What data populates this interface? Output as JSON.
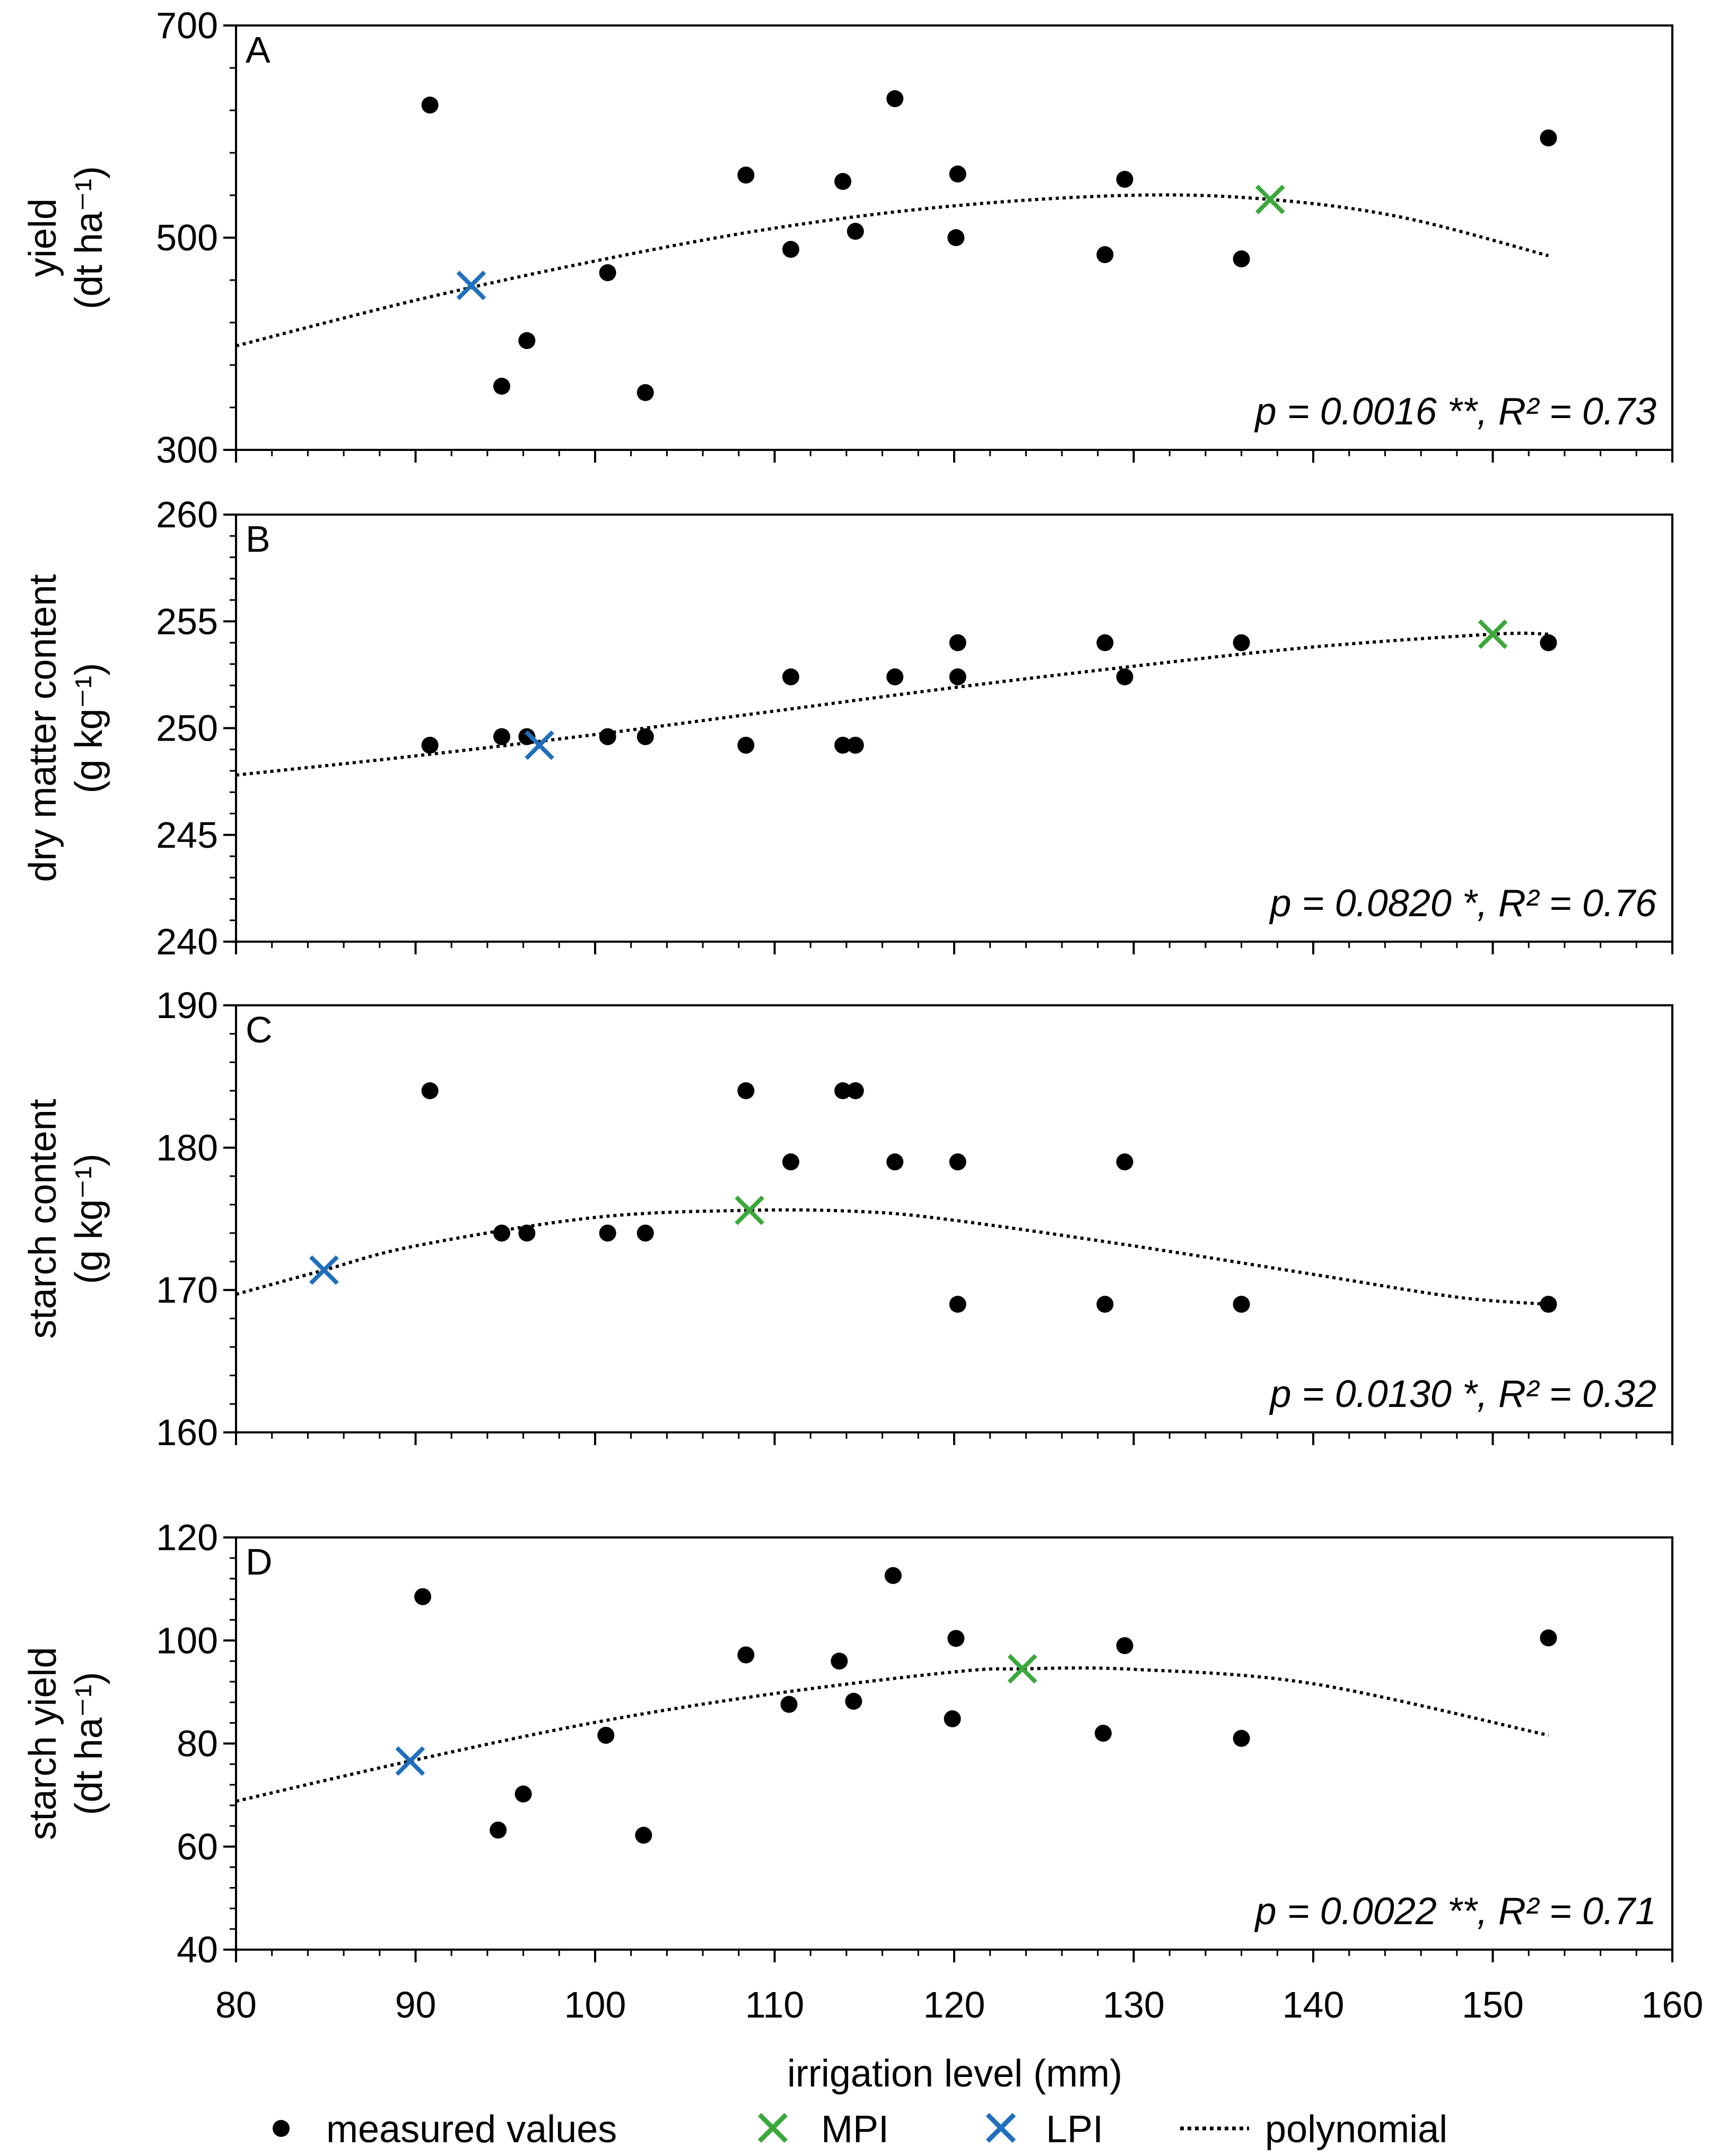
{
  "colors": {
    "measured": "#000000",
    "mpi": "#3aa83a",
    "lpi": "#1f6fbd",
    "curve": "#000000",
    "axis": "#000000"
  },
  "xaxis": {
    "label": "irrigation level (mm)",
    "range": [
      80,
      160
    ],
    "ticks": [
      80,
      90,
      100,
      110,
      120,
      130,
      140,
      150,
      160
    ]
  },
  "legend": {
    "items": [
      {
        "key": "measured",
        "label": "measured values",
        "marker": "dot"
      },
      {
        "key": "mpi",
        "label": "MPI",
        "marker": "cross"
      },
      {
        "key": "lpi",
        "label": "LPI",
        "marker": "cross"
      },
      {
        "key": "curve",
        "label": "polynomial",
        "marker": "dotted-line"
      }
    ]
  },
  "chart_data": [
    {
      "type": "scatter",
      "panel": "A",
      "ylabel_line1": "yield",
      "ylabel_line2": "(dt ha⁻¹)",
      "ylim": [
        300,
        700
      ],
      "yticks": [
        300,
        500,
        700
      ],
      "ytick_labels": [
        "300",
        "500",
        "700"
      ],
      "stats": "p = 0.0016 **, R² = 0.73",
      "measured": [
        [
          90.8,
          625
        ],
        [
          94.8,
          360
        ],
        [
          96.2,
          403
        ],
        [
          100.7,
          467
        ],
        [
          102.8,
          354
        ],
        [
          108.4,
          559
        ],
        [
          110.9,
          489
        ],
        [
          113.8,
          553
        ],
        [
          114.5,
          506
        ],
        [
          116.7,
          631
        ],
        [
          120.2,
          560
        ],
        [
          120.1,
          500
        ],
        [
          128.4,
          484
        ],
        [
          129.5,
          555
        ],
        [
          136,
          480
        ],
        [
          153.1,
          594
        ]
      ],
      "mpi": [
        137.6,
        536
      ],
      "lpi": [
        93.1,
        455
      ],
      "curve": [
        [
          80,
          398
        ],
        [
          90,
          441
        ],
        [
          100,
          478
        ],
        [
          110,
          509
        ],
        [
          120,
          530
        ],
        [
          130,
          540
        ],
        [
          137.6,
          536
        ],
        [
          145,
          519
        ],
        [
          153.1,
          483
        ]
      ]
    },
    {
      "type": "scatter",
      "panel": "B",
      "ylabel_line1": "dry matter content",
      "ylabel_line2": "(g kg⁻¹)",
      "ylim": [
        240,
        260
      ],
      "yticks": [
        240,
        245,
        250,
        255,
        260
      ],
      "ytick_labels": [
        "240",
        "245",
        "250",
        "255",
        "260"
      ],
      "stats": "p = 0.0820 *, R² = 0.76",
      "measured": [
        [
          90.8,
          249.2
        ],
        [
          94.8,
          249.6
        ],
        [
          96.2,
          249.6
        ],
        [
          100.7,
          249.6
        ],
        [
          102.8,
          249.6
        ],
        [
          108.4,
          249.2
        ],
        [
          110.9,
          252.4
        ],
        [
          113.8,
          249.2
        ],
        [
          114.5,
          249.2
        ],
        [
          116.7,
          252.4
        ],
        [
          120.2,
          254
        ],
        [
          120.2,
          252.4
        ],
        [
          128.4,
          254
        ],
        [
          129.5,
          252.4
        ],
        [
          136,
          254
        ],
        [
          153.1,
          254
        ]
      ],
      "mpi": [
        150,
        254.4
      ],
      "lpi": [
        96.9,
        249.2
      ],
      "curve": [
        [
          80,
          247.8
        ],
        [
          90,
          248.7
        ],
        [
          100,
          249.7
        ],
        [
          110,
          250.8
        ],
        [
          120,
          251.9
        ],
        [
          130,
          252.9
        ],
        [
          140,
          253.8
        ],
        [
          150,
          254.4
        ],
        [
          153.1,
          254.4
        ]
      ]
    },
    {
      "type": "scatter",
      "panel": "C",
      "ylabel_line1": "starch content",
      "ylabel_line2": "(g kg⁻¹)",
      "ylim": [
        160,
        190
      ],
      "yticks": [
        160,
        170,
        180,
        190
      ],
      "ytick_labels": [
        "160",
        "170",
        "180",
        "190"
      ],
      "stats": "p = 0.0130 *, R² = 0.32",
      "measured": [
        [
          90.8,
          184
        ],
        [
          94.8,
          174
        ],
        [
          96.2,
          174
        ],
        [
          100.7,
          174
        ],
        [
          102.8,
          174
        ],
        [
          108.4,
          184
        ],
        [
          110.9,
          179
        ],
        [
          113.8,
          184
        ],
        [
          114.5,
          184
        ],
        [
          116.7,
          179
        ],
        [
          120.2,
          179
        ],
        [
          120.2,
          169
        ],
        [
          128.4,
          169
        ],
        [
          129.5,
          179
        ],
        [
          136,
          169
        ],
        [
          153.1,
          169
        ]
      ],
      "mpi": [
        108.6,
        175.6
      ],
      "lpi": [
        84.9,
        171.4
      ],
      "curve": [
        [
          80,
          169.7
        ],
        [
          84.9,
          171.4
        ],
        [
          90,
          173.1
        ],
        [
          100,
          175.1
        ],
        [
          108.6,
          175.6
        ],
        [
          115,
          175.5
        ],
        [
          120,
          174.9
        ],
        [
          130,
          173.1
        ],
        [
          140,
          171.1
        ],
        [
          148,
          169.5
        ],
        [
          153.1,
          169
        ]
      ]
    },
    {
      "type": "scatter",
      "panel": "D",
      "ylabel_line1": "starch yield",
      "ylabel_line2": "(dt ha⁻¹)",
      "ylim": [
        40,
        120
      ],
      "yticks": [
        40,
        60,
        80,
        100,
        120
      ],
      "ytick_labels": [
        "40",
        "60",
        "80",
        "100",
        "120"
      ],
      "stats": "p = 0.0022 **, R² = 0.71",
      "measured": [
        [
          90.4,
          108.5
        ],
        [
          94.6,
          63.2
        ],
        [
          96.0,
          70.2
        ],
        [
          100.6,
          81.6
        ],
        [
          102.7,
          62.2
        ],
        [
          108.4,
          97.2
        ],
        [
          110.8,
          87.6
        ],
        [
          113.6,
          96.0
        ],
        [
          114.4,
          88.2
        ],
        [
          116.6,
          112.6
        ],
        [
          120.1,
          100.4
        ],
        [
          119.9,
          84.8
        ],
        [
          128.3,
          82.0
        ],
        [
          129.5,
          99.0
        ],
        [
          136,
          81.0
        ],
        [
          153.1,
          100.5
        ]
      ],
      "mpi": [
        123.8,
        94.5
      ],
      "lpi": [
        89.7,
        76.6
      ],
      "curve": [
        [
          80,
          68.8
        ],
        [
          89.7,
          76.6
        ],
        [
          100,
          84.1
        ],
        [
          110,
          89.7
        ],
        [
          120,
          93.9
        ],
        [
          123.8,
          94.5
        ],
        [
          130,
          94.4
        ],
        [
          140,
          91.6
        ],
        [
          153.1,
          81.6
        ]
      ]
    }
  ]
}
